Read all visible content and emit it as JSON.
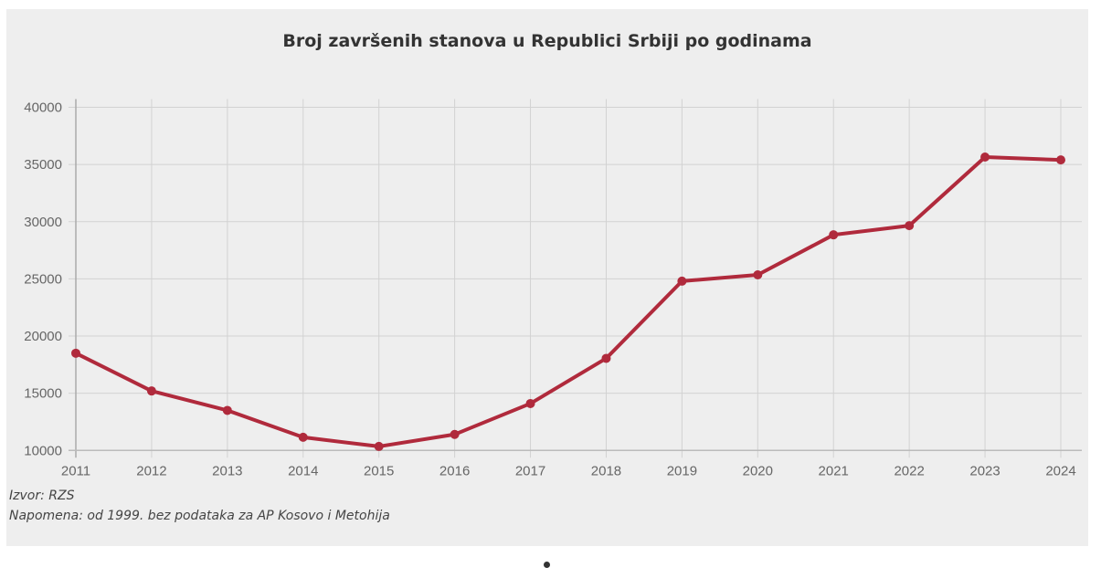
{
  "chart_data": {
    "type": "line",
    "title": "Broj završenih stanova u Republici Srbiji po godinama",
    "xlabel": "",
    "ylabel": "",
    "categories": [
      "2011",
      "2012",
      "2013",
      "2014",
      "2015",
      "2016",
      "2017",
      "2018",
      "2019",
      "2020",
      "2021",
      "2022",
      "2023",
      "2024"
    ],
    "series": [
      {
        "values": [
          18500,
          15200,
          13500,
          11150,
          10350,
          11400,
          14100,
          18050,
          24800,
          25350,
          28850,
          29650,
          35650,
          35400
        ],
        "color": "#b02a3c"
      }
    ],
    "ylim": [
      10000,
      40000
    ],
    "yticks": [
      "10000",
      "15000",
      "20000",
      "25000",
      "30000",
      "35000",
      "40000"
    ],
    "grid": true,
    "legend": "none"
  },
  "notes": {
    "source": "Izvor: RZS",
    "remark": "Napomena: od 1999. bez podataka za AP Kosovo i Metohija"
  }
}
